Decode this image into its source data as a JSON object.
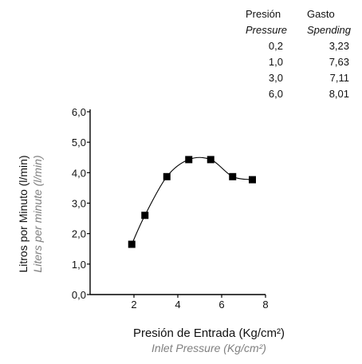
{
  "table": {
    "headers": [
      {
        "es": "Presión",
        "en": "Pressure"
      },
      {
        "es": "Gasto",
        "en": "Spending"
      }
    ],
    "rows": [
      [
        "0,2",
        "3,23"
      ],
      [
        "1,0",
        "7,63"
      ],
      [
        "3,0",
        "7,11"
      ],
      [
        "6,0",
        "8,01"
      ]
    ]
  },
  "chart_data": {
    "type": "line",
    "xlabel": "Presión de Entrada (Kg/cm²)",
    "xlabel_en": "Inlet Pressure  (Kg/cm²)",
    "ylabel": "Litros  por Minuto (l/min)",
    "ylabel_en": "Liters per minute (l/min)",
    "x_ticks": [
      "2",
      "4",
      "6",
      "8"
    ],
    "y_ticks": [
      "0,0",
      "1,0",
      "2,0",
      "3,0",
      "4,0",
      "5,0",
      "6,0"
    ],
    "xlim": [
      0,
      8
    ],
    "ylim": [
      0,
      6
    ],
    "grid": false,
    "marker": "square",
    "series": [
      {
        "x": [
          1.9,
          2.5,
          3.5,
          4.5,
          5.5,
          6.5,
          7.4
        ],
        "y": [
          1.65,
          2.6,
          3.87,
          4.43,
          4.43,
          3.87,
          3.77
        ]
      }
    ],
    "colors": {
      "line": "#000000",
      "axis": "#000000",
      "secondary_text": "#808080"
    }
  }
}
